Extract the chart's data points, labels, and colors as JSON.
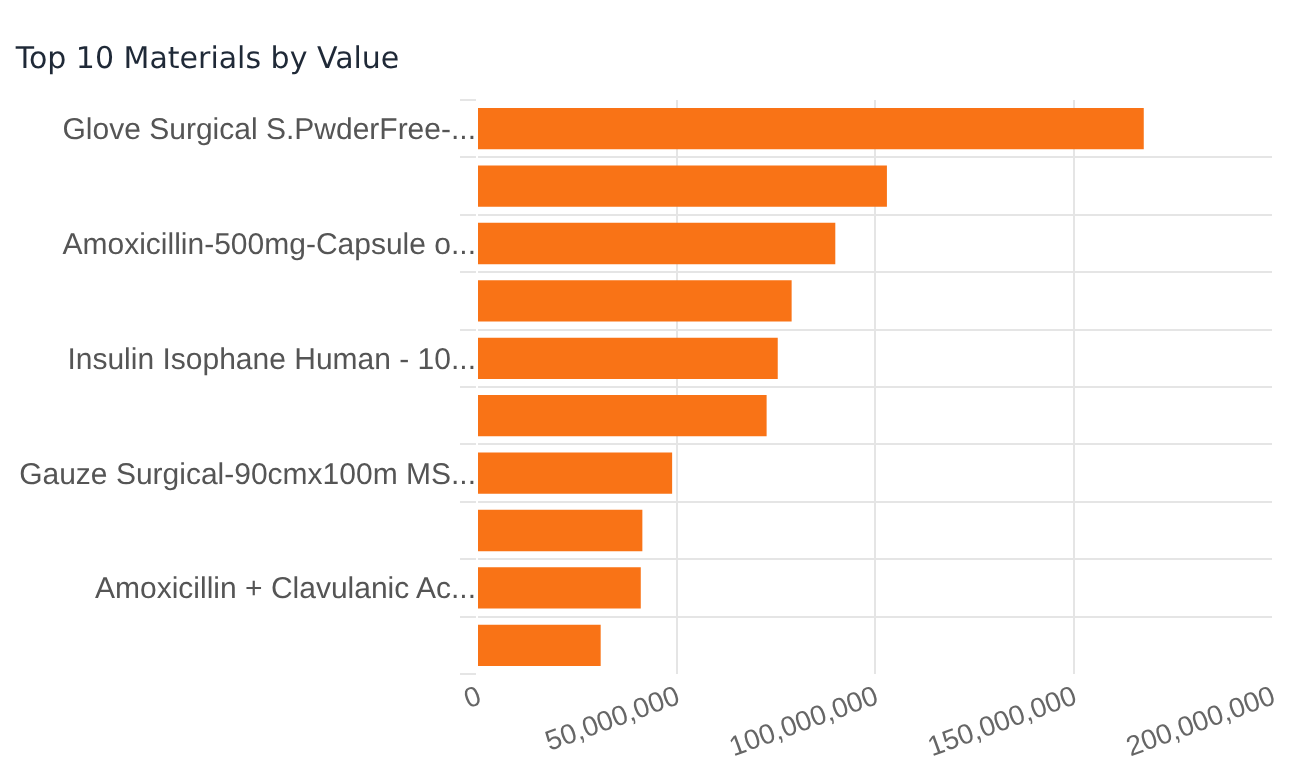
{
  "chart_data": {
    "type": "bar",
    "orientation": "horizontal",
    "title": "Top 10 Materials by Value",
    "categories": [
      "Glove Surgical S.PwderFree-...",
      null,
      "Amoxicillin-500mg-Capsule o...",
      null,
      "Insulin Isophane Human - 10...",
      null,
      "Gauze Surgical-90cmx100m MS...",
      null,
      "Amoxicillin + Clavulanic Ac...",
      null
    ],
    "values": [
      167700000,
      103000000,
      90000000,
      79000000,
      75500000,
      72700000,
      48900000,
      41400000,
      41000000,
      30900000
    ],
    "color": "#f97316",
    "xlim": [
      0,
      200000000
    ],
    "xticks": [
      0,
      {
        "value": 50000000,
        "label": "50,000,000"
      },
      {
        "value": 100000000,
        "label": "100,000,000"
      },
      {
        "value": 150000000,
        "label": "150,000,000"
      },
      {
        "value": 200000000,
        "label": "200,000,000"
      }
    ],
    "grid": true
  }
}
